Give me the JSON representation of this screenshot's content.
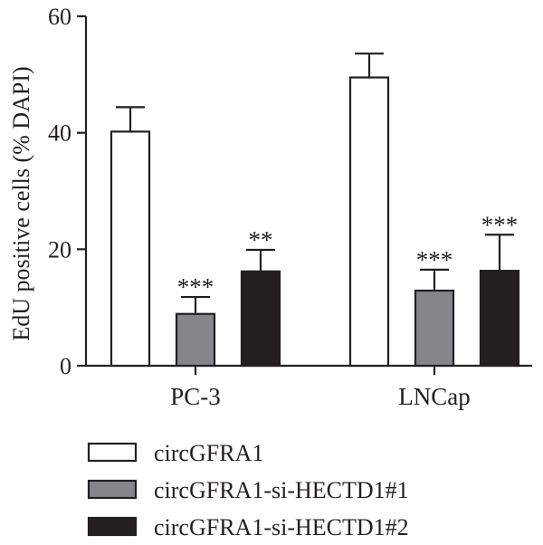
{
  "chart_data": {
    "type": "bar",
    "ylabel": "EdU positive cells (% DAPI)",
    "xlabel": "",
    "ylim": [
      0,
      60
    ],
    "yticks": [
      0,
      20,
      40,
      60
    ],
    "categories": [
      "PC-3",
      "LNCap"
    ],
    "series": [
      {
        "name": "circGFRA1",
        "color": "#ffffff",
        "values": [
          40.2,
          49.5
        ],
        "errors": [
          4.2,
          4.1
        ],
        "significance": [
          "",
          ""
        ]
      },
      {
        "name": "circGFRA1-si-HECTD1#1",
        "color": "#86868a",
        "values": [
          8.9,
          12.9
        ],
        "errors": [
          2.9,
          3.6
        ],
        "significance": [
          "***",
          "***"
        ]
      },
      {
        "name": "circGFRA1-si-HECTD1#2",
        "color": "#231f20",
        "values": [
          16.2,
          16.3
        ],
        "errors": [
          3.7,
          6.2
        ],
        "significance": [
          "**",
          "***"
        ]
      }
    ],
    "legend_position": "bottom",
    "grid": false
  }
}
